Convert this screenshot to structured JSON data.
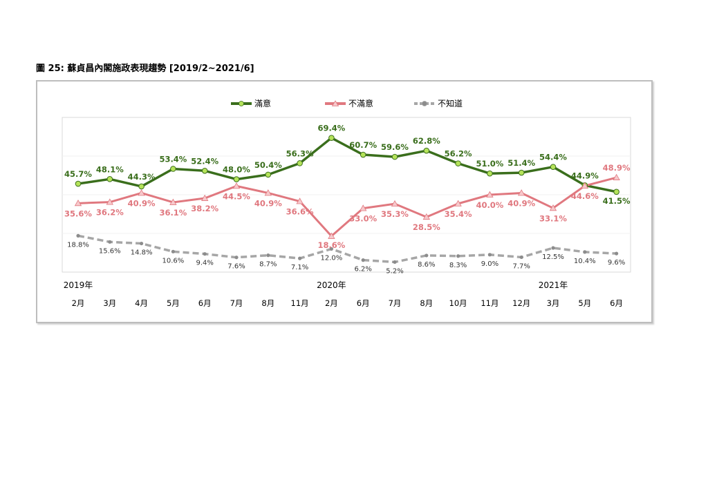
{
  "figure_title": "圖 25:  蘇貞昌內閣施政表現趨勢  [2019/2~2021/6]",
  "chart_data": {
    "type": "line",
    "title": "圖 25:  蘇貞昌內閣施政表現趨勢  [2019/2~2021/6]",
    "categories": [
      "2月",
      "3月",
      "4月",
      "5月",
      "6月",
      "7月",
      "8月",
      "11月",
      "2月",
      "6月",
      "7月",
      "8月",
      "10月",
      "11月",
      "12月",
      "3月",
      "5月",
      "6月"
    ],
    "year_labels": [
      {
        "index": 0,
        "label": "2019年"
      },
      {
        "index": 8,
        "label": "2020年"
      },
      {
        "index": 15,
        "label": "2021年"
      }
    ],
    "series": [
      {
        "name": "滿意",
        "color": "#3a6e1c",
        "marker_color": "#b5e35a",
        "values": [
          45.7,
          48.1,
          44.3,
          53.4,
          52.4,
          48.0,
          50.4,
          56.3,
          69.4,
          60.7,
          59.6,
          62.8,
          56.2,
          51.0,
          51.4,
          54.4,
          44.9,
          41.5
        ],
        "labels": [
          "45.7%",
          "48.1%",
          "44.3%",
          "53.4%",
          "52.4%",
          "48.0%",
          "50.4%",
          "56.3%",
          "69.4%",
          "60.7%",
          "59.6%",
          "62.8%",
          "56.2%",
          "51.0%",
          "51.4%",
          "54.4%",
          "44.9%",
          "41.5%"
        ]
      },
      {
        "name": "不滿意",
        "color": "#e0787f",
        "marker_color": "#f7c9cc",
        "values": [
          35.6,
          36.2,
          40.9,
          36.1,
          38.2,
          44.5,
          40.9,
          36.6,
          18.6,
          33.0,
          35.3,
          28.5,
          35.4,
          40.0,
          40.9,
          33.1,
          44.6,
          48.9
        ],
        "labels": [
          "35.6%",
          "36.2%",
          "40.9%",
          "36.1%",
          "38.2%",
          "44.5%",
          "40.9%",
          "36.6%",
          "18.6%",
          "33.0%",
          "35.3%",
          "28.5%",
          "35.4%",
          "40.0%",
          "40.9%",
          "33.1%",
          "44.6%",
          "48.9%"
        ]
      },
      {
        "name": "不知道",
        "color": "#a6a6a6",
        "marker_color": "#8c8c8c",
        "values": [
          18.8,
          15.6,
          14.8,
          10.6,
          9.4,
          7.6,
          8.7,
          7.1,
          12.0,
          6.2,
          5.2,
          8.6,
          8.3,
          9.0,
          7.7,
          12.5,
          10.4,
          9.6
        ],
        "labels": [
          "18.8%",
          "15.6%",
          "14.8%",
          "10.6%",
          "9.4%",
          "7.6%",
          "8.7%",
          "7.1%",
          "12.0%",
          "6.2%",
          "5.2%",
          "8.6%",
          "8.3%",
          "9.0%",
          "7.7%",
          "12.5%",
          "10.4%",
          "9.6%"
        ]
      }
    ],
    "legend_position": "top-center",
    "grid": true
  }
}
